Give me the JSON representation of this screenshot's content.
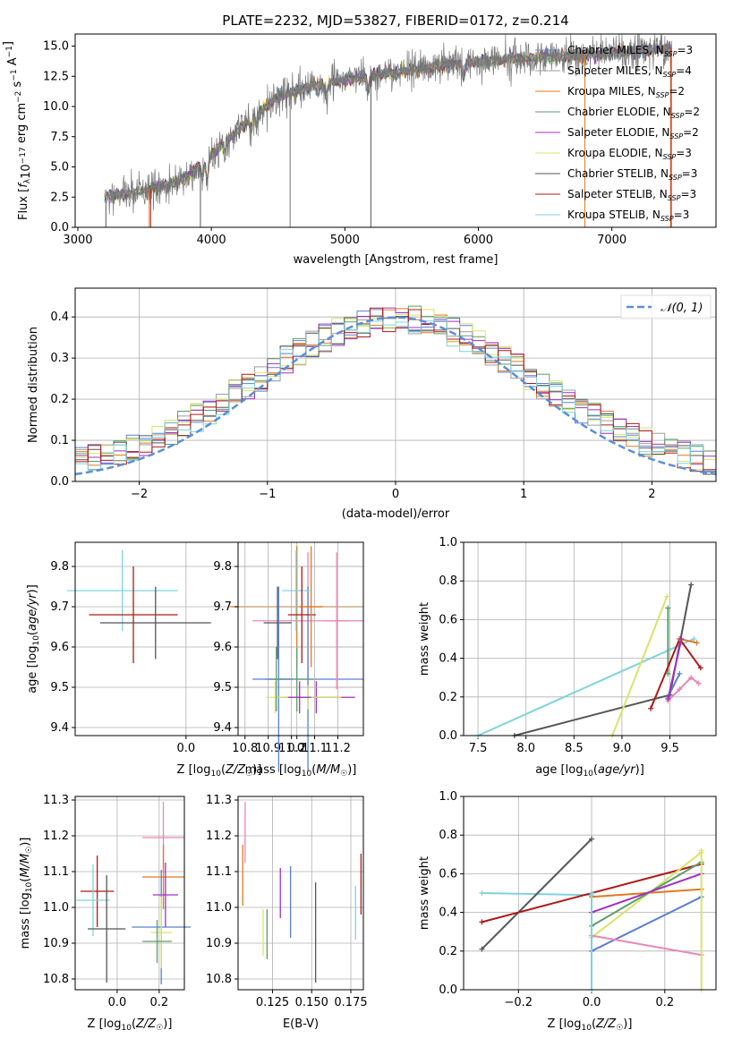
{
  "colors": {
    "Chabrier MILES": "#5b7fd6",
    "Salpeter MILES": "#9e9e9e",
    "Kroupa MILES": "#e07a1f",
    "Chabrier ELODIE": "#5e9c6b",
    "Salpeter ELODIE": "#a030c0",
    "Kroupa ELODIE": "#d8e46a",
    "Chabrier STELIB": "#555555",
    "Salpeter STELIB": "#b01818",
    "Kroupa STELIB": "#7fd3dc",
    "pink": "#e986b8",
    "gauss": "#5b8fd6"
  },
  "chart_data": [
    {
      "id": "spectrum",
      "type": "line",
      "title": "PLATE=2232, MJD=53827, FIBERID=0172, z=0.214",
      "xlabel": "wavelength [Angstrom, rest frame]",
      "ylabel": "Flux [f_λ 10^-17 erg cm^-2 s^-1 A^-1]",
      "xlim": [
        2980,
        7780
      ],
      "ylim": [
        0,
        16
      ],
      "xticks": [
        3000,
        4000,
        5000,
        6000,
        7000
      ],
      "yticks": [
        "0.0",
        "2.5",
        "5.0",
        "7.5",
        "10.0",
        "12.5",
        "15.0"
      ],
      "legend_position": "upper-right",
      "legend": [
        {
          "name": "Chabrier MILES, N_SSP=3",
          "color": "#5b7fd6"
        },
        {
          "name": "Salpeter MILES, N_SSP=4",
          "color": "#9e9e9e"
        },
        {
          "name": "Kroupa MILES, N_SSP=2",
          "color": "#e07a1f"
        },
        {
          "name": "Chabrier ELODIE, N_SSP=2",
          "color": "#5e9c6b"
        },
        {
          "name": "Salpeter ELODIE, N_SSP=2",
          "color": "#a030c0"
        },
        {
          "name": "Kroupa ELODIE, N_SSP=3",
          "color": "#d8e46a"
        },
        {
          "name": "Chabrier STELIB, N_SSP=3",
          "color": "#555555"
        },
        {
          "name": "Salpeter STELIB, N_SSP=3",
          "color": "#b01818"
        },
        {
          "name": "Kroupa STELIB, N_SSP=3",
          "color": "#7fd3dc"
        }
      ],
      "continuum": [
        [
          3200,
          2.5
        ],
        [
          3500,
          3.0
        ],
        [
          3800,
          4.0
        ],
        [
          3950,
          5.5
        ],
        [
          4100,
          7.0
        ],
        [
          4300,
          9.0
        ],
        [
          4500,
          10.8
        ],
        [
          4700,
          11.5
        ],
        [
          5000,
          12.2
        ],
        [
          5300,
          12.7
        ],
        [
          5600,
          13.2
        ],
        [
          5900,
          13.6
        ],
        [
          6200,
          13.9
        ],
        [
          6500,
          14.1
        ],
        [
          6800,
          14.3
        ],
        [
          7100,
          14.5
        ],
        [
          7400,
          14.8
        ]
      ],
      "data_xrange": [
        3200,
        7450
      ]
    },
    {
      "id": "residuals",
      "type": "line",
      "xlabel": "(data-model)/error",
      "ylabel": "Normed distribution",
      "xlim": [
        -2.5,
        2.5
      ],
      "ylim": [
        0,
        0.47
      ],
      "xticks": [
        "−2",
        "−1",
        "0",
        "1",
        "2"
      ],
      "yticks": [
        "0.0",
        "0.1",
        "0.2",
        "0.3",
        "0.4"
      ],
      "legend": [
        {
          "name": "𝒩(0, 1)",
          "color": "#5b8fd6",
          "style": "dashed"
        }
      ],
      "legend_position": "upper-right",
      "gaussian": {
        "mu": 0,
        "sigma": 1
      },
      "bin_width": 0.1
    },
    {
      "id": "age_vs_Z",
      "type": "scatter",
      "xlabel": "Z [log10(Z/Z☉)]",
      "ylabel": "age  [log10(age/yr)]",
      "xlim": [
        -0.2,
        0.32
      ],
      "ylim": [
        9.38,
        9.86
      ],
      "xticks": [
        -0.0,
        0.2
      ],
      "xtick_labels": [
        "0.0",
        "0.2"
      ],
      "yticks": [
        9.4,
        9.5,
        9.6,
        9.7,
        9.8
      ],
      "points": [
        {
          "color": "#7fd3dc",
          "x": -0.115,
          "xerr": 0.1,
          "y": 9.74,
          "yerr": 0.1
        },
        {
          "color": "#b01818",
          "x": -0.095,
          "xerr": 0.08,
          "y": 9.68,
          "yerr": 0.12
        },
        {
          "color": "#555555",
          "x": -0.055,
          "xerr": 0.1,
          "y": 9.66,
          "yerr": 0.09
        },
        {
          "color": "#e07a1f",
          "x": 0.2,
          "xerr": 0.12,
          "y": 9.7,
          "yerr": 0.15
        },
        {
          "color": "#e986b8",
          "x": 0.22,
          "xerr": 0.1,
          "y": 9.665,
          "yerr": 0.17
        },
        {
          "color": "#5b7fd6",
          "x": 0.22,
          "xerr": 0.1,
          "y": 9.52,
          "yerr": 0.23
        },
        {
          "color": "#a030c0",
          "x": 0.235,
          "xerr": 0.07,
          "y": 9.475,
          "yerr": 0.04
        },
        {
          "color": "#d8e46a",
          "x": 0.22,
          "xerr": 0.06,
          "y": 9.475,
          "yerr": 0.03
        },
        {
          "color": "#5e9c6b",
          "x": 0.2,
          "xerr": 0.03,
          "y": 9.52,
          "yerr": 0.08
        }
      ]
    },
    {
      "id": "age_vs_mass",
      "type": "scatter",
      "xlabel": "mass [log10(M/M☉)]",
      "xlim": [
        10.77,
        11.31
      ],
      "ylim": [
        9.38,
        9.86
      ],
      "xticks": [
        10.8,
        10.9,
        11.0,
        11.1,
        11.2
      ],
      "xtick_labels": [
        "10.8",
        "10.9",
        "11.0",
        "11.1",
        "11.2"
      ],
      "yticks": [
        9.4,
        9.5,
        9.6,
        9.7,
        9.8
      ],
      "points": [
        {
          "color": "#7fd3dc",
          "x": 11.02,
          "xerr": 0.06,
          "y": 9.74,
          "yerr": 0.1
        },
        {
          "color": "#b01818",
          "x": 11.045,
          "xerr": 0.06,
          "y": 9.68,
          "yerr": 0.12
        },
        {
          "color": "#555555",
          "x": 10.94,
          "xerr": 0.06,
          "y": 9.66,
          "yerr": 0.09
        },
        {
          "color": "#e07a1f",
          "x": 11.085,
          "xerr": 0.05,
          "y": 9.7,
          "yerr": 0.15
        },
        {
          "color": "#e986b8",
          "x": 11.195,
          "xerr": 0.055,
          "y": 9.665,
          "yerr": 0.17
        },
        {
          "color": "#5b7fd6",
          "x": 10.945,
          "xerr": 0.06,
          "y": 9.52,
          "yerr": 0.23
        },
        {
          "color": "#a030c0",
          "x": 11.035,
          "xerr": 0.05,
          "y": 9.475,
          "yerr": 0.04
        },
        {
          "color": "#d8e46a",
          "x": 10.93,
          "xerr": 0.04,
          "y": 9.475,
          "yerr": 0.04
        },
        {
          "color": "#5e9c6b",
          "x": 10.935,
          "xerr": 0.03,
          "y": 9.52,
          "yerr": 0.08
        }
      ]
    },
    {
      "id": "massweight_vs_age",
      "type": "line",
      "xlabel": "age  [log10(age/yr)]",
      "ylabel": "mass weight",
      "xlim": [
        7.35,
        9.98
      ],
      "ylim": [
        0,
        1
      ],
      "xticks": [
        7.5,
        8.0,
        8.5,
        9.0,
        9.5
      ],
      "xtick_labels": [
        "7.5",
        "8.0",
        "8.5",
        "9.0",
        "9.5"
      ],
      "yticks": [
        0,
        0.2,
        0.4,
        0.6,
        0.8,
        1.0
      ],
      "ytick_labels": [
        "0.0",
        "0.2",
        "0.4",
        "0.6",
        "0.8",
        "1.0"
      ],
      "series": [
        {
          "color": "#7fd3dc",
          "x": [
            7.5,
            9.75
          ],
          "y": [
            0.0,
            0.5
          ]
        },
        {
          "color": "#555555",
          "x": [
            7.88,
            9.5,
            9.72
          ],
          "y": [
            0.0,
            0.21,
            0.78
          ]
        },
        {
          "color": "#d8e46a",
          "x": [
            8.9,
            9.47
          ],
          "y": [
            0.0,
            0.72
          ]
        },
        {
          "color": "#5e9c6b",
          "x": [
            9.48,
            9.48
          ],
          "y": [
            0.32,
            0.66
          ]
        },
        {
          "color": "#5b7fd6",
          "x": [
            9.48,
            9.6
          ],
          "y": [
            0.2,
            0.32
          ]
        },
        {
          "color": "#b01818",
          "x": [
            9.3,
            9.6,
            9.82
          ],
          "y": [
            0.14,
            0.5,
            0.35
          ]
        },
        {
          "color": "#e07a1f",
          "x": [
            9.6,
            9.78
          ],
          "y": [
            0.5,
            0.48
          ]
        },
        {
          "color": "#e986b8",
          "x": [
            9.48,
            9.6,
            9.72,
            9.8
          ],
          "y": [
            0.18,
            0.24,
            0.3,
            0.27
          ]
        },
        {
          "color": "#a030c0",
          "x": [
            9.48,
            9.62
          ],
          "y": [
            0.19,
            0.5
          ]
        }
      ]
    },
    {
      "id": "mass_vs_Z",
      "type": "scatter",
      "xlabel": "Z [log10(Z/Z☉)]",
      "ylabel": "mass [log10(M/M☉)]",
      "xlim": [
        -0.2,
        0.32
      ],
      "ylim": [
        10.77,
        11.31
      ],
      "xticks": [
        0.0,
        0.2
      ],
      "xtick_labels": [
        "0.0",
        "0.2"
      ],
      "yticks": [
        10.8,
        10.9,
        11.0,
        11.1,
        11.2,
        11.3
      ],
      "points": [
        {
          "color": "#b01818",
          "x": -0.095,
          "xerr": 0.08,
          "y": 11.045,
          "yerr": 0.1
        },
        {
          "color": "#7fd3dc",
          "x": -0.115,
          "xerr": 0.08,
          "y": 11.02,
          "yerr": 0.1
        },
        {
          "color": "#555555",
          "x": -0.05,
          "xerr": 0.09,
          "y": 10.94,
          "yerr": 0.15
        },
        {
          "color": "#e986b8",
          "x": 0.22,
          "xerr": 0.1,
          "y": 11.195,
          "yerr": 0.1
        },
        {
          "color": "#e07a1f",
          "x": 0.22,
          "xerr": 0.1,
          "y": 11.085,
          "yerr": 0.09
        },
        {
          "color": "#a030c0",
          "x": 0.23,
          "xerr": 0.06,
          "y": 11.035,
          "yerr": 0.09
        },
        {
          "color": "#5b7fd6",
          "x": 0.21,
          "xerr": 0.14,
          "y": 10.945,
          "yerr": 0.16
        },
        {
          "color": "#d8e46a",
          "x": 0.21,
          "xerr": 0.05,
          "y": 10.93,
          "yerr": 0.1
        },
        {
          "color": "#5e9c6b",
          "x": 0.19,
          "xerr": 0.07,
          "y": 10.905,
          "yerr": 0.06
        }
      ]
    },
    {
      "id": "mass_vs_EBV",
      "type": "scatter",
      "xlabel": "E(B-V)",
      "xlim": [
        0.103,
        0.183
      ],
      "ylim": [
        10.77,
        11.31
      ],
      "xticks": [
        0.125,
        0.15,
        0.175
      ],
      "xtick_labels": [
        "0.125",
        "0.150",
        "0.175"
      ],
      "yticks": [
        10.8,
        10.9,
        11.0,
        11.1,
        11.2,
        11.3
      ],
      "points": [
        {
          "color": "#e986b8",
          "x": 0.1075,
          "y": 11.21,
          "yerr": 0.085
        },
        {
          "color": "#e07a1f",
          "x": 0.106,
          "y": 11.09,
          "yerr": 0.085
        },
        {
          "color": "#d8e46a",
          "x": 0.119,
          "y": 10.93,
          "yerr": 0.065
        },
        {
          "color": "#5e9c6b",
          "x": 0.1215,
          "y": 10.925,
          "yerr": 0.07
        },
        {
          "color": "#a030c0",
          "x": 0.13,
          "y": 11.04,
          "yerr": 0.07
        },
        {
          "color": "#5b7fd6",
          "x": 0.1365,
          "y": 11.015,
          "yerr": 0.1
        },
        {
          "color": "#555555",
          "x": 0.1525,
          "y": 10.93,
          "yerr": 0.14
        },
        {
          "color": "#7fd3dc",
          "x": 0.178,
          "y": 10.985,
          "yerr": 0.075
        },
        {
          "color": "#b01818",
          "x": 0.1815,
          "y": 11.065,
          "yerr": 0.085
        }
      ]
    },
    {
      "id": "massweight_vs_Z",
      "type": "line",
      "xlabel": "Z [log10(Z/Z☉)]",
      "ylabel": "mass weight",
      "xlim": [
        -0.35,
        0.34
      ],
      "ylim": [
        0,
        1
      ],
      "xticks": [
        -0.2,
        0.0,
        0.2
      ],
      "xtick_labels": [
        "−0.2",
        "0.0",
        "0.2"
      ],
      "yticks": [
        0,
        0.2,
        0.4,
        0.6,
        0.8,
        1.0
      ],
      "ytick_labels": [
        "0.0",
        "0.2",
        "0.4",
        "0.6",
        "0.8",
        "1.0"
      ],
      "series": [
        {
          "color": "#7fd3dc",
          "x": [
            -0.3,
            0.0
          ],
          "y": [
            0.5,
            0.49
          ]
        },
        {
          "color": "#555555",
          "x": [
            -0.3,
            0.0
          ],
          "y": [
            0.21,
            0.78
          ]
        },
        {
          "color": "#b01818",
          "x": [
            -0.3,
            0.3
          ],
          "y": [
            0.35,
            0.65
          ]
        },
        {
          "color": "#e07a1f",
          "x": [
            0.0,
            0.3
          ],
          "y": [
            0.48,
            0.52
          ]
        },
        {
          "color": "#d8e46a",
          "x": [
            0.0,
            0.3
          ],
          "y": [
            0.27,
            0.71
          ]
        },
        {
          "color": "#5e9c6b",
          "x": [
            0.0,
            0.3
          ],
          "y": [
            0.33,
            0.66
          ]
        },
        {
          "color": "#5b7fd6",
          "x": [
            0.0,
            0.3
          ],
          "y": [
            0.2,
            0.48
          ]
        },
        {
          "color": "#a030c0",
          "x": [
            0.0,
            0.3
          ],
          "y": [
            0.4,
            0.6
          ]
        },
        {
          "color": "#e986b8",
          "x": [
            0.0,
            0.3
          ],
          "y": [
            0.28,
            0.18
          ]
        },
        {
          "color": "#7fd3dc",
          "x": [
            0.0,
            0.0
          ],
          "y": [
            0.0,
            0.5
          ]
        },
        {
          "color": "#d8e46a",
          "x": [
            0.3,
            0.3
          ],
          "y": [
            0.0,
            0.72
          ]
        }
      ]
    }
  ]
}
